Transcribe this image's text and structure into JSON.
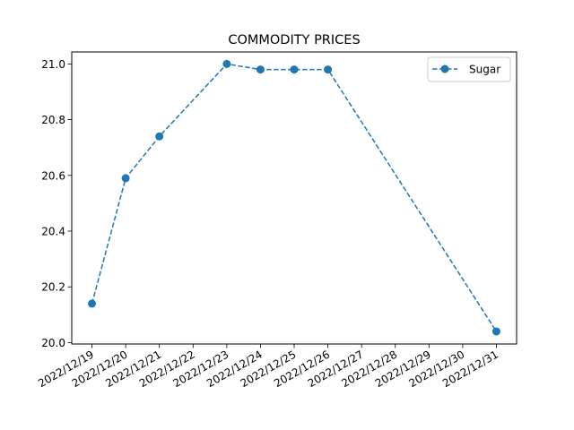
{
  "chart_data": {
    "type": "line",
    "title": "COMMODITY PRICES",
    "xlabel": "",
    "ylabel": "",
    "x_ticks": [
      "2022/12/19",
      "2022/12/20",
      "2022/12/21",
      "2022/12/22",
      "2022/12/23",
      "2022/12/24",
      "2022/12/25",
      "2022/12/26",
      "2022/12/27",
      "2022/12/28",
      "2022/12/29",
      "2022/12/30",
      "2022/12/31"
    ],
    "y_ticks": [
      "20.0",
      "20.2",
      "20.4",
      "20.6",
      "20.8",
      "21.0"
    ],
    "ylim": [
      19.995,
      21.043
    ],
    "grid": false,
    "legend_position": "top-right",
    "series": [
      {
        "name": "Sugar",
        "color": "#1f77b4",
        "line_style": "dashed",
        "marker": "circle",
        "points": [
          {
            "x": "2022/12/19",
            "y": 20.14
          },
          {
            "x": "2022/12/20",
            "y": 20.59
          },
          {
            "x": "2022/12/21",
            "y": 20.74
          },
          {
            "x": "2022/12/23",
            "y": 21.0
          },
          {
            "x": "2022/12/24",
            "y": 20.98
          },
          {
            "x": "2022/12/25",
            "y": 20.98
          },
          {
            "x": "2022/12/26",
            "y": 20.98
          },
          {
            "x": "2022/12/31",
            "y": 20.04
          }
        ]
      }
    ]
  }
}
